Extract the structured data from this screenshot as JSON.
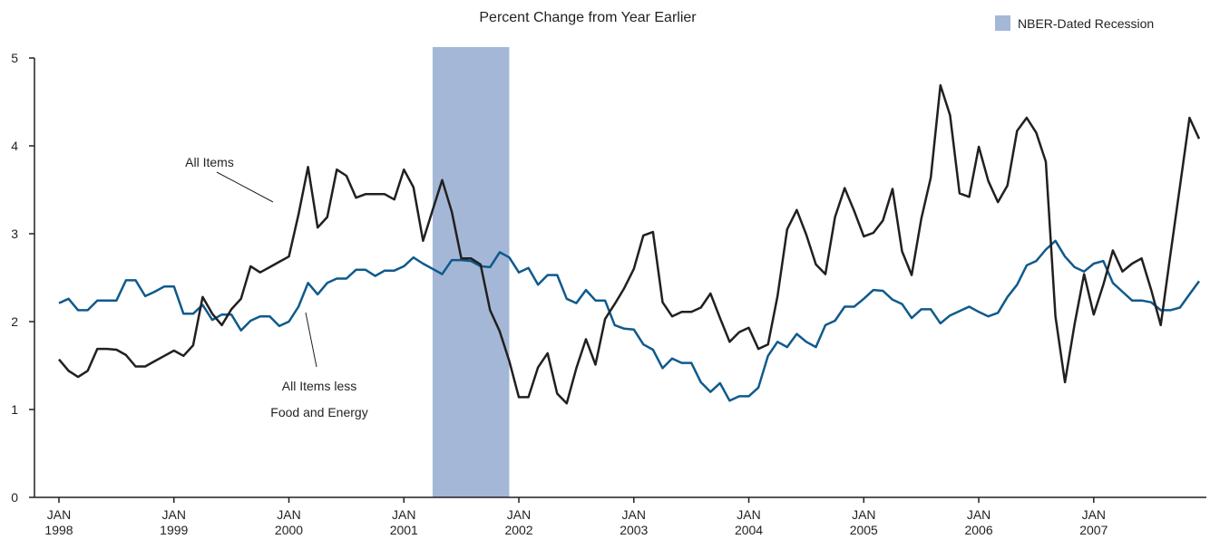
{
  "chart_data": {
    "type": "line",
    "title": "Percent Change from Year Earlier",
    "x": [
      "1998-01",
      "1998-02",
      "1998-03",
      "1998-04",
      "1998-05",
      "1998-06",
      "1998-07",
      "1998-08",
      "1998-09",
      "1998-10",
      "1998-11",
      "1998-12",
      "1999-01",
      "1999-02",
      "1999-03",
      "1999-04",
      "1999-05",
      "1999-06",
      "1999-07",
      "1999-08",
      "1999-09",
      "1999-10",
      "1999-11",
      "1999-12",
      "2000-01",
      "2000-02",
      "2000-03",
      "2000-04",
      "2000-05",
      "2000-06",
      "2000-07",
      "2000-08",
      "2000-09",
      "2000-10",
      "2000-11",
      "2000-12",
      "2001-01",
      "2001-02",
      "2001-03",
      "2001-04",
      "2001-05",
      "2001-06",
      "2001-07",
      "2001-08",
      "2001-09",
      "2001-10",
      "2001-11",
      "2001-12",
      "2002-01",
      "2002-02",
      "2002-03",
      "2002-04",
      "2002-05",
      "2002-06",
      "2002-07",
      "2002-08",
      "2002-09",
      "2002-10",
      "2002-11",
      "2002-12",
      "2003-01",
      "2003-02",
      "2003-03",
      "2003-04",
      "2003-05",
      "2003-06",
      "2003-07",
      "2003-08",
      "2003-09",
      "2003-10",
      "2003-11",
      "2003-12",
      "2004-01",
      "2004-02",
      "2004-03",
      "2004-04",
      "2004-05",
      "2004-06",
      "2004-07",
      "2004-08",
      "2004-09",
      "2004-10",
      "2004-11",
      "2004-12",
      "2005-01",
      "2005-02",
      "2005-03",
      "2005-04",
      "2005-05",
      "2005-06",
      "2005-07",
      "2005-08",
      "2005-09",
      "2005-10",
      "2005-11",
      "2005-12",
      "2006-01",
      "2006-02",
      "2006-03",
      "2006-04",
      "2006-05",
      "2006-06",
      "2006-07",
      "2006-08",
      "2006-09",
      "2006-10",
      "2006-11",
      "2006-12",
      "2007-01",
      "2007-02",
      "2007-03",
      "2007-04",
      "2007-05",
      "2007-06",
      "2007-07",
      "2007-08",
      "2007-09",
      "2007-10",
      "2007-11",
      "2007-12"
    ],
    "series": [
      {
        "name": "All Items",
        "color": "#231f20",
        "values": [
          1.57,
          1.44,
          1.37,
          1.44,
          1.69,
          1.69,
          1.68,
          1.62,
          1.49,
          1.49,
          1.55,
          1.61,
          1.67,
          1.61,
          1.73,
          2.28,
          2.09,
          1.96,
          2.14,
          2.26,
          2.63,
          2.56,
          2.62,
          2.68,
          2.74,
          3.22,
          3.76,
          3.07,
          3.19,
          3.73,
          3.66,
          3.41,
          3.45,
          3.45,
          3.45,
          3.39,
          3.73,
          3.53,
          2.92,
          3.27,
          3.61,
          3.25,
          2.72,
          2.72,
          2.65,
          2.13,
          1.89,
          1.55,
          1.14,
          1.14,
          1.48,
          1.64,
          1.18,
          1.07,
          1.47,
          1.8,
          1.51,
          2.03,
          2.2,
          2.38,
          2.6,
          2.98,
          3.02,
          2.22,
          2.06,
          2.11,
          2.11,
          2.16,
          2.32,
          2.04,
          1.77,
          1.88,
          1.93,
          1.69,
          1.74,
          2.29,
          3.05,
          3.27,
          2.99,
          2.65,
          2.54,
          3.19,
          3.52,
          3.26,
          2.97,
          3.01,
          3.15,
          3.51,
          2.8,
          2.53,
          3.17,
          3.64,
          4.69,
          4.35,
          3.46,
          3.42,
          3.99,
          3.6,
          3.36,
          3.55,
          4.17,
          4.32,
          4.15,
          3.82,
          2.06,
          1.31,
          1.97,
          2.54,
          2.08,
          2.42,
          2.81,
          2.57,
          2.66,
          2.72,
          2.36,
          1.96,
          2.76,
          3.54,
          4.32,
          4.08
        ]
      },
      {
        "name": "All Items less Food and Energy",
        "color": "#0f5a8c",
        "values": [
          2.21,
          2.26,
          2.13,
          2.13,
          2.24,
          2.24,
          2.24,
          2.47,
          2.47,
          2.29,
          2.34,
          2.4,
          2.4,
          2.09,
          2.09,
          2.19,
          2.02,
          2.08,
          2.08,
          1.9,
          2.01,
          2.06,
          2.06,
          1.95,
          2.0,
          2.17,
          2.44,
          2.31,
          2.44,
          2.49,
          2.49,
          2.59,
          2.59,
          2.52,
          2.58,
          2.58,
          2.63,
          2.73,
          2.66,
          2.6,
          2.54,
          2.7,
          2.7,
          2.69,
          2.63,
          2.62,
          2.79,
          2.73,
          2.56,
          2.61,
          2.42,
          2.53,
          2.53,
          2.26,
          2.21,
          2.36,
          2.24,
          2.24,
          1.96,
          1.92,
          1.91,
          1.74,
          1.68,
          1.47,
          1.58,
          1.53,
          1.53,
          1.31,
          1.2,
          1.3,
          1.1,
          1.15,
          1.15,
          1.25,
          1.61,
          1.77,
          1.71,
          1.86,
          1.77,
          1.71,
          1.96,
          2.01,
          2.17,
          2.17,
          2.26,
          2.36,
          2.35,
          2.25,
          2.2,
          2.04,
          2.14,
          2.14,
          1.98,
          2.07,
          2.12,
          2.17,
          2.11,
          2.06,
          2.1,
          2.28,
          2.42,
          2.64,
          2.69,
          2.82,
          2.92,
          2.74,
          2.62,
          2.57,
          2.66,
          2.69,
          2.44,
          2.34,
          2.24,
          2.24,
          2.22,
          2.13,
          2.13,
          2.16,
          2.31,
          2.46
        ]
      }
    ],
    "ylim": [
      0,
      5
    ],
    "yticks": [
      0,
      1,
      2,
      3,
      4,
      5
    ],
    "xticks": [
      {
        "value": "1998-01",
        "label": "JAN 1998"
      },
      {
        "value": "1999-01",
        "label": "JAN 1999"
      },
      {
        "value": "2000-01",
        "label": "JAN 2000"
      },
      {
        "value": "2001-01",
        "label": "JAN 2001"
      },
      {
        "value": "2002-01",
        "label": "JAN 2002"
      },
      {
        "value": "2003-01",
        "label": "JAN 2003"
      },
      {
        "value": "2004-01",
        "label": "JAN 2004"
      },
      {
        "value": "2005-01",
        "label": "JAN 2005"
      },
      {
        "value": "2006-01",
        "label": "JAN 2006"
      },
      {
        "value": "2007-01",
        "label": "JAN 2007"
      }
    ],
    "recession": {
      "label": "NBER-Dated Recession",
      "start": "2001-03",
      "end": "2001-11",
      "color": "#a4b7d6"
    },
    "annotations": [
      {
        "lines": [
          "All Items"
        ]
      },
      {
        "lines": [
          "All Items less",
          "Food and Energy"
        ]
      }
    ]
  }
}
